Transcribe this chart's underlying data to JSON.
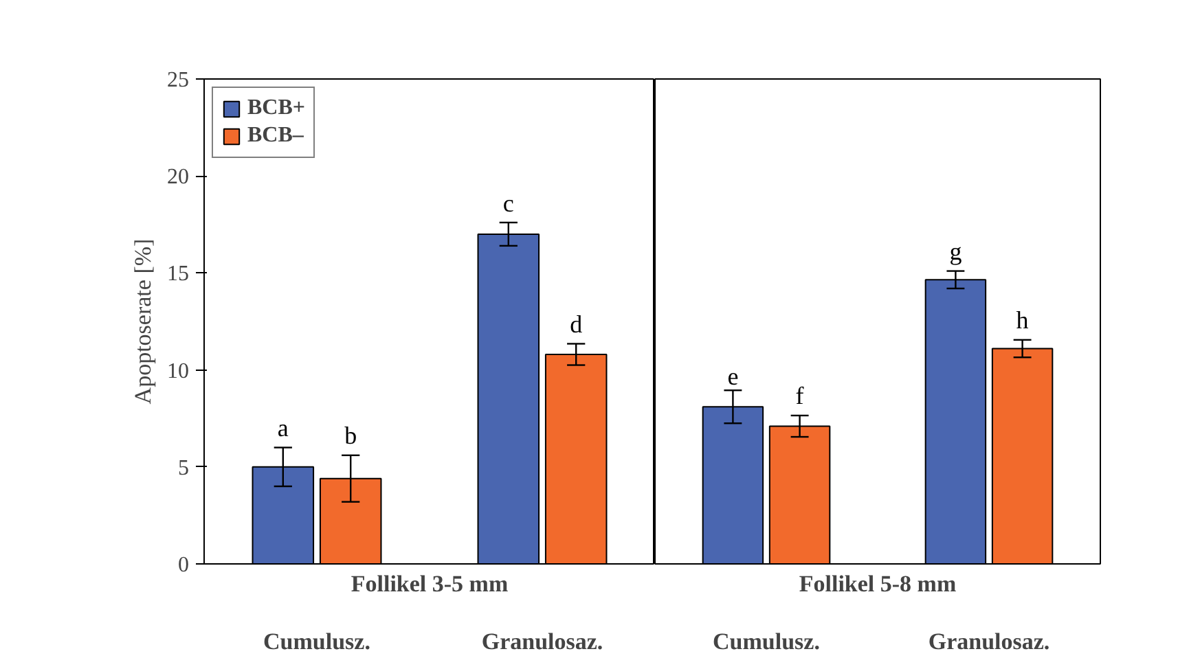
{
  "chart_data": [
    {
      "type": "bar",
      "ylabel": "Apoptoserate [%]",
      "xlabel": "Follikel 3-5 mm",
      "categories": [
        "Cumulusz.",
        "Granulosaz."
      ],
      "ylim": [
        0,
        25
      ],
      "yticks": [
        0,
        5,
        10,
        15,
        20,
        25
      ],
      "legend": "top left",
      "grid": false,
      "series": [
        {
          "name": "BCB+",
          "color": "#4a66b0",
          "values": [
            5.0,
            17.0
          ],
          "errors": [
            1.0,
            0.6
          ],
          "value_labels": [
            "a",
            "c"
          ]
        },
        {
          "name": "BCB–",
          "color": "#f26a2c",
          "values": [
            4.4,
            10.8
          ],
          "errors": [
            1.2,
            0.55
          ],
          "value_labels": [
            "b",
            "d"
          ]
        }
      ]
    },
    {
      "type": "bar",
      "xlabel": "Follikel 5-8 mm",
      "categories": [
        "Cumulusz.",
        "Granulosaz."
      ],
      "ylim": [
        0,
        25
      ],
      "tick_labels": "x",
      "grid": false,
      "series": [
        {
          "color": "#4a66b0",
          "values": [
            8.1,
            14.65
          ],
          "errors": [
            0.85,
            0.45
          ],
          "value_labels": [
            "e",
            "g"
          ]
        },
        {
          "color": "#f26a2c",
          "values": [
            7.1,
            11.1
          ],
          "errors": [
            0.55,
            0.45
          ],
          "value_labels": [
            "f",
            "h"
          ]
        }
      ]
    }
  ]
}
